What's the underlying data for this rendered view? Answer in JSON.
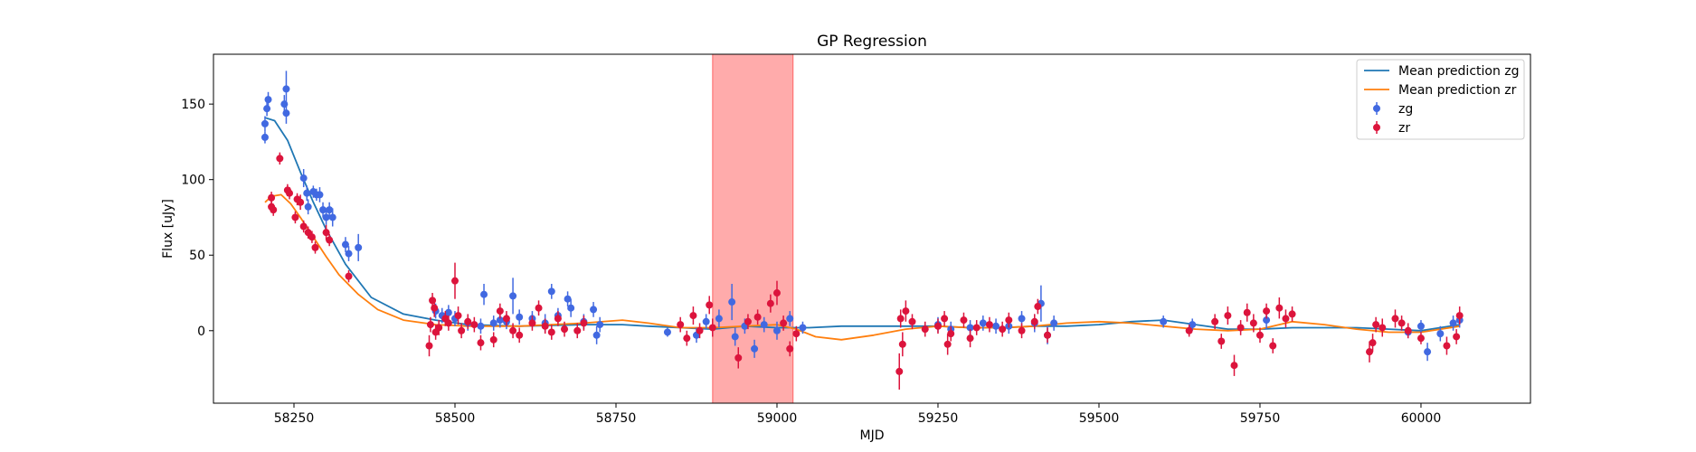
{
  "chart_data": {
    "type": "scatter",
    "title": "GP Regression",
    "xlabel": "MJD",
    "ylabel": "Flux [uJy]",
    "xlim": [
      58125,
      60170
    ],
    "ylim": [
      -48,
      183
    ],
    "xticks": [
      58250,
      58500,
      58750,
      59000,
      59250,
      59500,
      59750,
      60000
    ],
    "yticks": [
      0,
      50,
      100,
      150
    ],
    "grid": false,
    "legend_position": "top-right",
    "shaded_region": {
      "x_start": 58900,
      "x_end": 59025,
      "color": "#ff0000",
      "opacity": 0.33
    },
    "legend": [
      {
        "label": "Mean prediction zg",
        "kind": "line",
        "color": "#1f77b4"
      },
      {
        "label": "Mean prediction zr",
        "kind": "line",
        "color": "#ff7f0e"
      },
      {
        "label": "zg",
        "kind": "errorbar",
        "color": "#4169e1"
      },
      {
        "label": "zr",
        "kind": "errorbar",
        "color": "#dc143c"
      }
    ],
    "series": [
      {
        "name": "Mean prediction zg",
        "kind": "line",
        "color": "#1f77b4",
        "x": [
          58205,
          58220,
          58240,
          58260,
          58280,
          58300,
          58330,
          58370,
          58420,
          58470,
          58520,
          58600,
          58700,
          58760,
          58800,
          58850,
          58900,
          58950,
          59000,
          59050,
          59100,
          59150,
          59200,
          59250,
          59300,
          59350,
          59400,
          59450,
          59500,
          59550,
          59600,
          59650,
          59700,
          59750,
          59800,
          59850,
          59900,
          59950,
          60000,
          60060
        ],
        "y": [
          141,
          139,
          126,
          105,
          85,
          67,
          44,
          22,
          11,
          7,
          4,
          3,
          4,
          4,
          3,
          2,
          1,
          3,
          2,
          2,
          3,
          3,
          3,
          3,
          2,
          2,
          3,
          3,
          4,
          6,
          7,
          4,
          1,
          1,
          2,
          2,
          2,
          1,
          0,
          4
        ]
      },
      {
        "name": "Mean prediction zr",
        "kind": "line",
        "color": "#ff7f0e",
        "x": [
          58205,
          58215,
          58230,
          58245,
          58260,
          58280,
          58300,
          58320,
          58350,
          58380,
          58420,
          58470,
          58520,
          58600,
          58700,
          58760,
          58800,
          58850,
          58900,
          58950,
          59000,
          59030,
          59060,
          59100,
          59150,
          59200,
          59250,
          59300,
          59350,
          59400,
          59450,
          59500,
          59550,
          59600,
          59650,
          59700,
          59750,
          59800,
          59850,
          59900,
          59950,
          60000,
          60060
        ],
        "y": [
          85,
          89,
          90,
          84,
          75,
          62,
          49,
          37,
          24,
          14,
          7,
          4,
          3,
          3,
          5,
          7,
          5,
          2,
          2,
          3,
          4,
          1,
          -4,
          -6,
          -3,
          1,
          3,
          2,
          2,
          3,
          5,
          6,
          5,
          3,
          1,
          0,
          1,
          6,
          4,
          1,
          -1,
          -1,
          3
        ]
      },
      {
        "name": "zg",
        "kind": "errorbar",
        "color": "#4169e1",
        "points": [
          [
            58205,
            128,
            4
          ],
          [
            58205,
            137,
            5
          ],
          [
            58208,
            147,
            5
          ],
          [
            58210,
            153,
            5
          ],
          [
            58235,
            150,
            6
          ],
          [
            58238,
            144,
            7
          ],
          [
            58238,
            160,
            12
          ],
          [
            58265,
            101,
            6
          ],
          [
            58270,
            91,
            5
          ],
          [
            58272,
            82,
            5
          ],
          [
            58280,
            92,
            4
          ],
          [
            58285,
            90,
            4
          ],
          [
            58290,
            90,
            5
          ],
          [
            58295,
            80,
            5
          ],
          [
            58300,
            75,
            5
          ],
          [
            58305,
            80,
            5
          ],
          [
            58310,
            75,
            6
          ],
          [
            58330,
            57,
            5
          ],
          [
            58335,
            51,
            5
          ],
          [
            58350,
            55,
            9
          ],
          [
            58470,
            13,
            5
          ],
          [
            58480,
            10,
            5
          ],
          [
            58490,
            12,
            5
          ],
          [
            58500,
            8,
            5
          ],
          [
            58520,
            5,
            5
          ],
          [
            58540,
            3,
            5
          ],
          [
            58545,
            24,
            7
          ],
          [
            58560,
            5,
            5
          ],
          [
            58570,
            7,
            5
          ],
          [
            58580,
            6,
            5
          ],
          [
            58590,
            23,
            12
          ],
          [
            58600,
            9,
            5
          ],
          [
            58620,
            8,
            5
          ],
          [
            58640,
            5,
            6
          ],
          [
            58650,
            26,
            5
          ],
          [
            58660,
            10,
            5
          ],
          [
            58675,
            21,
            5
          ],
          [
            58680,
            15,
            6
          ],
          [
            58700,
            6,
            5
          ],
          [
            58715,
            14,
            5
          ],
          [
            58720,
            -3,
            6
          ],
          [
            58725,
            4,
            5
          ],
          [
            58830,
            -1,
            3
          ],
          [
            58875,
            -3,
            5
          ],
          [
            58890,
            6,
            5
          ],
          [
            58910,
            8,
            6
          ],
          [
            58930,
            19,
            12
          ],
          [
            58935,
            -4,
            6
          ],
          [
            58950,
            3,
            5
          ],
          [
            58965,
            -12,
            6
          ],
          [
            58980,
            4,
            5
          ],
          [
            59000,
            0,
            6
          ],
          [
            59020,
            8,
            5
          ],
          [
            59040,
            2,
            4
          ],
          [
            59250,
            4,
            5
          ],
          [
            59270,
            1,
            5
          ],
          [
            59300,
            2,
            5
          ],
          [
            59320,
            5,
            5
          ],
          [
            59340,
            3,
            5
          ],
          [
            59360,
            3,
            5
          ],
          [
            59380,
            8,
            5
          ],
          [
            59400,
            5,
            6
          ],
          [
            59410,
            18,
            12
          ],
          [
            59420,
            -3,
            6
          ],
          [
            59430,
            5,
            5
          ],
          [
            59600,
            6,
            4
          ],
          [
            59645,
            4,
            4
          ],
          [
            59760,
            7,
            6
          ],
          [
            59980,
            -1,
            4
          ],
          [
            60000,
            3,
            4
          ],
          [
            60010,
            -14,
            6
          ],
          [
            60030,
            -2,
            5
          ],
          [
            60050,
            5,
            5
          ],
          [
            60060,
            7,
            5
          ]
        ]
      },
      {
        "name": "zr",
        "kind": "errorbar",
        "color": "#dc143c",
        "points": [
          [
            58215,
            88,
            4
          ],
          [
            58215,
            82,
            4
          ],
          [
            58218,
            80,
            4
          ],
          [
            58228,
            114,
            4
          ],
          [
            58240,
            93,
            4
          ],
          [
            58243,
            91,
            4
          ],
          [
            58252,
            75,
            4
          ],
          [
            58255,
            87,
            4
          ],
          [
            58260,
            85,
            5
          ],
          [
            58265,
            69,
            4
          ],
          [
            58272,
            65,
            4
          ],
          [
            58278,
            62,
            4
          ],
          [
            58283,
            55,
            4
          ],
          [
            58300,
            65,
            5
          ],
          [
            58305,
            60,
            4
          ],
          [
            58335,
            36,
            4
          ],
          [
            58460,
            -10,
            7
          ],
          [
            58462,
            4,
            5
          ],
          [
            58465,
            20,
            5
          ],
          [
            58468,
            15,
            6
          ],
          [
            58470,
            -1,
            5
          ],
          [
            58475,
            2,
            5
          ],
          [
            58485,
            8,
            5
          ],
          [
            58490,
            5,
            5
          ],
          [
            58500,
            33,
            12
          ],
          [
            58505,
            10,
            6
          ],
          [
            58510,
            0,
            5
          ],
          [
            58520,
            6,
            5
          ],
          [
            58530,
            4,
            5
          ],
          [
            58540,
            -8,
            5
          ],
          [
            58560,
            -6,
            5
          ],
          [
            58570,
            13,
            5
          ],
          [
            58580,
            8,
            5
          ],
          [
            58590,
            0,
            5
          ],
          [
            58600,
            -3,
            5
          ],
          [
            58620,
            5,
            5
          ],
          [
            58630,
            15,
            5
          ],
          [
            58640,
            3,
            5
          ],
          [
            58650,
            -1,
            5
          ],
          [
            58660,
            8,
            5
          ],
          [
            58670,
            1,
            5
          ],
          [
            58690,
            0,
            5
          ],
          [
            58700,
            5,
            5
          ],
          [
            58850,
            4,
            5
          ],
          [
            58860,
            -5,
            5
          ],
          [
            58870,
            10,
            6
          ],
          [
            58880,
            0,
            5
          ],
          [
            58895,
            17,
            6
          ],
          [
            58900,
            2,
            6
          ],
          [
            58940,
            -18,
            7
          ],
          [
            58955,
            6,
            5
          ],
          [
            58970,
            9,
            5
          ],
          [
            58990,
            18,
            6
          ],
          [
            59000,
            25,
            8
          ],
          [
            59010,
            5,
            5
          ],
          [
            59020,
            -12,
            5
          ],
          [
            59030,
            -2,
            5
          ],
          [
            59190,
            -27,
            12
          ],
          [
            59192,
            8,
            6
          ],
          [
            59195,
            -9,
            8
          ],
          [
            59200,
            13,
            7
          ],
          [
            59210,
            6,
            5
          ],
          [
            59230,
            1,
            5
          ],
          [
            59250,
            3,
            5
          ],
          [
            59260,
            8,
            5
          ],
          [
            59265,
            -9,
            7
          ],
          [
            59270,
            -2,
            5
          ],
          [
            59290,
            7,
            5
          ],
          [
            59300,
            -5,
            6
          ],
          [
            59310,
            2,
            5
          ],
          [
            59330,
            4,
            5
          ],
          [
            59350,
            1,
            5
          ],
          [
            59360,
            7,
            5
          ],
          [
            59380,
            0,
            5
          ],
          [
            59400,
            6,
            5
          ],
          [
            59405,
            16,
            5
          ],
          [
            59420,
            -3,
            5
          ],
          [
            59640,
            0,
            4
          ],
          [
            59680,
            6,
            5
          ],
          [
            59690,
            -7,
            5
          ],
          [
            59700,
            10,
            6
          ],
          [
            59710,
            -23,
            7
          ],
          [
            59720,
            2,
            5
          ],
          [
            59730,
            12,
            6
          ],
          [
            59740,
            5,
            6
          ],
          [
            59750,
            -3,
            5
          ],
          [
            59760,
            13,
            5
          ],
          [
            59770,
            -10,
            5
          ],
          [
            59780,
            15,
            7
          ],
          [
            59790,
            8,
            6
          ],
          [
            59800,
            11,
            5
          ],
          [
            59920,
            -14,
            7
          ],
          [
            59925,
            -8,
            6
          ],
          [
            59930,
            4,
            5
          ],
          [
            59940,
            2,
            6
          ],
          [
            59960,
            8,
            6
          ],
          [
            59970,
            5,
            5
          ],
          [
            59980,
            0,
            5
          ],
          [
            60000,
            -5,
            4
          ],
          [
            60040,
            -10,
            6
          ],
          [
            60055,
            -4,
            5
          ],
          [
            60060,
            10,
            6
          ]
        ]
      }
    ]
  }
}
